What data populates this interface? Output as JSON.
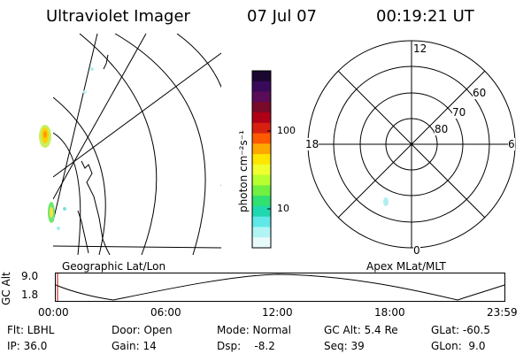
{
  "header": {
    "title": "Ultraviolet Imager",
    "date": "07 Jul 07",
    "time": "00:19:21 UT"
  },
  "colorbar": {
    "unit_label": "photon cm⁻²s⁻¹",
    "ticks": [
      "100",
      "10"
    ],
    "colors": [
      "#1a0830",
      "#3a0a5a",
      "#5a0c58",
      "#7a0a2a",
      "#b00018",
      "#d82010",
      "#ff5a00",
      "#ffa800",
      "#ffe600",
      "#f0ff30",
      "#b8ff30",
      "#70f040",
      "#30e070",
      "#20d8b0",
      "#60e8e8",
      "#b0f4f4",
      "#e8fafa"
    ]
  },
  "left_map": {
    "label": "Geographic Lat/Lon"
  },
  "polar": {
    "label": "Apex MLat/MLT",
    "mlt_labels": {
      "top": "12",
      "left": "18",
      "right": "6",
      "bottom": "0"
    },
    "lat_labels": [
      "60",
      "70",
      "80"
    ]
  },
  "altitude_plot": {
    "ylabel": "GC Alt",
    "yticks": [
      "9.0",
      "1.8"
    ],
    "xticks": [
      "00:00",
      "06:00",
      "12:00",
      "18:00",
      "23:59"
    ]
  },
  "status": {
    "flt": "Flt: LBHL",
    "door": "Door: Open",
    "mode": "Mode: Normal",
    "gcalt": "GC Alt: 5.4 Re",
    "glat": "GLat: -60.5",
    "ip": "IP: 36.0",
    "gain": "Gain: 14",
    "dsp": "Dsp:    -8.2",
    "seq": "Seq: 39",
    "glon": "GLon:  9.0"
  }
}
